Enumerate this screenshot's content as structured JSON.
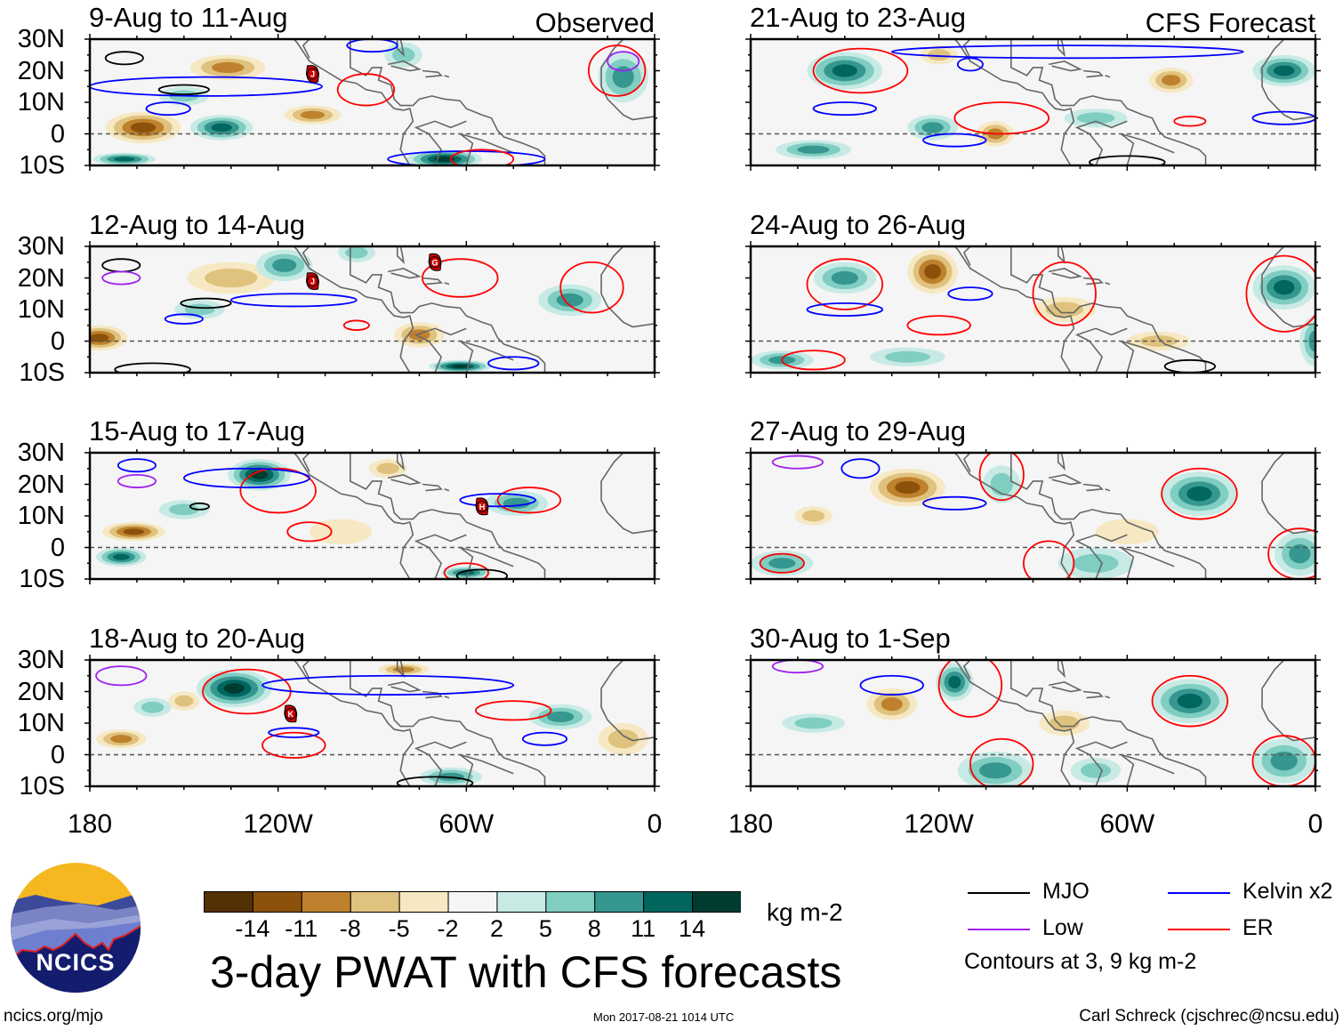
{
  "chart_data": {
    "type": "heatmap",
    "title": "3-day PWAT with CFS forecasts",
    "units": "kg m-2",
    "lat_ticks": [
      "30N",
      "20N",
      "10N",
      "0",
      "10S"
    ],
    "lon_ticks": [
      "180",
      "120W",
      "60W",
      "0"
    ],
    "lat_range": [
      -10,
      30
    ],
    "lon_range_west": [
      180,
      0
    ],
    "colorbar": {
      "labels": [
        "-14",
        "-11",
        "-8",
        "-5",
        "-2",
        "2",
        "5",
        "8",
        "11",
        "14"
      ],
      "colors": [
        "#543005",
        "#8c510a",
        "#bf812d",
        "#dfc27d",
        "#f6e8c3",
        "#f5f5f5",
        "#c7eae5",
        "#80cdc1",
        "#35978f",
        "#01665e",
        "#003c30"
      ]
    },
    "legend": {
      "items": [
        {
          "label": "MJO",
          "color": "#000000"
        },
        {
          "label": "Kelvin x2",
          "color": "#0000ff"
        },
        {
          "label": "Low",
          "color": "#a020f0"
        },
        {
          "label": "ER",
          "color": "#ff0000"
        }
      ],
      "note": "Contours at 3, 9 kg m-2"
    },
    "panels": [
      {
        "title": "9-Aug to 11-Aug",
        "tag": "Observed",
        "anomalies": [
          [
            136,
            21,
            12,
            4,
            -8
          ],
          [
            163,
            2,
            12,
            5,
            -11
          ],
          [
            138,
            2,
            10,
            4,
            11
          ],
          [
            109,
            6,
            9,
            3,
            -8
          ],
          [
            67,
            -8,
            12,
            3,
            14
          ],
          [
            10,
            18,
            8,
            8,
            8
          ],
          [
            169,
            -8,
            10,
            2,
            11
          ],
          [
            150,
            12,
            8,
            3,
            5
          ],
          [
            80,
            25,
            6,
            4,
            5
          ]
        ],
        "contours": [
          [
            "Kelvin",
            143,
            15,
            37,
            3
          ],
          [
            "ER",
            92,
            14,
            9,
            5
          ],
          [
            "MJO",
            169,
            24,
            6,
            2
          ],
          [
            "MJO",
            150,
            14,
            8,
            1.5
          ],
          [
            "Kelvin",
            155,
            8,
            7,
            2
          ],
          [
            "Kelvin",
            60,
            -8,
            25,
            2.5
          ],
          [
            "ER",
            55,
            -8,
            10,
            3
          ],
          [
            "ER",
            12,
            20,
            9,
            8
          ],
          [
            "Low",
            10,
            23,
            5,
            3
          ],
          [
            "Kelvin",
            90,
            28,
            8,
            2
          ]
        ],
        "storms": [
          [
            "J",
            109,
            19
          ]
        ]
      },
      {
        "title": "12-Aug to 14-Aug",
        "tag": "",
        "anomalies": [
          [
            177,
            1,
            9,
            4,
            -11
          ],
          [
            135,
            20,
            14,
            5,
            -5
          ],
          [
            118,
            24,
            9,
            5,
            8
          ],
          [
            62,
            -8,
            10,
            2,
            14
          ],
          [
            27,
            13,
            10,
            5,
            8
          ],
          [
            145,
            10,
            8,
            3,
            5
          ],
          [
            75,
            2,
            8,
            4,
            -8
          ],
          [
            95,
            28,
            6,
            3,
            5
          ]
        ],
        "contours": [
          [
            "MJO",
            170,
            24,
            6,
            2
          ],
          [
            "MJO",
            143,
            12,
            8,
            1.5
          ],
          [
            "Kelvin",
            115,
            13,
            20,
            2
          ],
          [
            "ER",
            62,
            20,
            12,
            6
          ],
          [
            "ER",
            20,
            17,
            10,
            8
          ],
          [
            "Kelvin",
            45,
            -7,
            8,
            2
          ],
          [
            "MJO",
            160,
            -9,
            12,
            2
          ],
          [
            "Kelvin",
            150,
            7,
            6,
            1.5
          ],
          [
            "ER",
            95,
            5,
            4,
            1.5
          ],
          [
            "Low",
            170,
            20,
            6,
            2
          ]
        ],
        "storms": [
          [
            "J",
            109,
            19
          ],
          [
            "G",
            70,
            25
          ]
        ]
      },
      {
        "title": "15-Aug to 17-Aug",
        "tag": "",
        "anomalies": [
          [
            126,
            23,
            10,
            5,
            14
          ],
          [
            166,
            5,
            10,
            3,
            -11
          ],
          [
            170,
            -3,
            8,
            3,
            11
          ],
          [
            44,
            14,
            10,
            4,
            8
          ],
          [
            150,
            12,
            8,
            3,
            5
          ],
          [
            85,
            25,
            6,
            3,
            -5
          ],
          [
            60,
            -8,
            8,
            2,
            11
          ],
          [
            100,
            5,
            10,
            4,
            -2
          ]
        ],
        "contours": [
          [
            "ER",
            120,
            18,
            12,
            7
          ],
          [
            "ER",
            110,
            5,
            7,
            3
          ],
          [
            "ER",
            40,
            15,
            10,
            4
          ],
          [
            "Kelvin",
            130,
            22,
            20,
            3
          ],
          [
            "Kelvin",
            50,
            15,
            12,
            2
          ],
          [
            "ER",
            60,
            -8,
            7,
            3
          ],
          [
            "MJO",
            145,
            13,
            3,
            1
          ],
          [
            "MJO",
            55,
            -9,
            8,
            2
          ],
          [
            "Kelvin",
            165,
            26,
            6,
            2
          ],
          [
            "Low",
            165,
            21,
            6,
            2
          ]
        ],
        "storms": [
          [
            "H",
            55,
            13
          ]
        ]
      },
      {
        "title": "18-Aug to 20-Aug",
        "tag": "",
        "anomalies": [
          [
            134,
            21,
            12,
            6,
            14
          ],
          [
            30,
            12,
            10,
            4,
            8
          ],
          [
            170,
            5,
            8,
            3,
            -8
          ],
          [
            160,
            15,
            6,
            3,
            5
          ],
          [
            150,
            17,
            5,
            3,
            -5
          ],
          [
            10,
            5,
            8,
            5,
            -5
          ],
          [
            65,
            -7,
            10,
            3,
            8
          ],
          [
            80,
            27,
            8,
            2,
            -8
          ]
        ],
        "contours": [
          [
            "ER",
            130,
            20,
            14,
            7
          ],
          [
            "Kelvin",
            85,
            22,
            40,
            3
          ],
          [
            "ER",
            45,
            14,
            12,
            3
          ],
          [
            "ER",
            115,
            3,
            10,
            4
          ],
          [
            "Kelvin",
            115,
            7,
            8,
            1.5
          ],
          [
            "Kelvin",
            35,
            5,
            7,
            2
          ],
          [
            "MJO",
            70,
            -9,
            12,
            2
          ],
          [
            "Low",
            170,
            25,
            8,
            3
          ]
        ],
        "storms": [
          [
            "K",
            116,
            13
          ]
        ]
      },
      {
        "title": "21-Aug to 23-Aug",
        "tag": "CFS Forecast",
        "anomalies": [
          [
            150,
            20,
            12,
            6,
            11
          ],
          [
            10,
            20,
            10,
            5,
            11
          ],
          [
            122,
            2,
            8,
            4,
            8
          ],
          [
            120,
            25,
            6,
            3,
            -5
          ],
          [
            46,
            17,
            7,
            4,
            -8
          ],
          [
            102,
            0,
            6,
            4,
            -8
          ],
          [
            160,
            -5,
            12,
            3,
            8
          ],
          [
            70,
            5,
            10,
            3,
            5
          ]
        ],
        "contours": [
          [
            "ER",
            145,
            20,
            15,
            7
          ],
          [
            "Kelvin",
            79,
            26,
            56,
            2
          ],
          [
            "ER",
            100,
            5,
            15,
            5
          ],
          [
            "Kelvin",
            150,
            8,
            10,
            2
          ],
          [
            "Kelvin",
            10,
            5,
            10,
            2
          ],
          [
            "Kelvin",
            110,
            22,
            4,
            2
          ],
          [
            "MJO",
            60,
            -9,
            12,
            2
          ],
          [
            "ER",
            40,
            4,
            5,
            1.5
          ],
          [
            "Kelvin",
            115,
            -2,
            10,
            2
          ]
        ],
        "storms": []
      },
      {
        "title": "24-Aug to 26-Aug",
        "tag": "",
        "anomalies": [
          [
            122,
            22,
            8,
            7,
            -11
          ],
          [
            150,
            20,
            10,
            5,
            8
          ],
          [
            10,
            17,
            10,
            7,
            11
          ],
          [
            0,
            0,
            5,
            8,
            8
          ],
          [
            130,
            -5,
            12,
            3,
            5
          ],
          [
            80,
            10,
            10,
            4,
            -5
          ],
          [
            50,
            0,
            10,
            3,
            -5
          ],
          [
            170,
            -6,
            10,
            3,
            8
          ]
        ],
        "contours": [
          [
            "ER",
            150,
            18,
            12,
            8
          ],
          [
            "ER",
            80,
            15,
            10,
            10
          ],
          [
            "ER",
            10,
            15,
            12,
            12
          ],
          [
            "ER",
            120,
            5,
            10,
            3
          ],
          [
            "Kelvin",
            110,
            15,
            7,
            2
          ],
          [
            "MJO",
            40,
            -8,
            8,
            2
          ],
          [
            "ER",
            160,
            -6,
            10,
            3
          ],
          [
            "Kelvin",
            150,
            10,
            12,
            2
          ]
        ],
        "storms": []
      },
      {
        "title": "27-Aug to 29-Aug",
        "tag": "",
        "anomalies": [
          [
            130,
            19,
            12,
            6,
            -11
          ],
          [
            37,
            17,
            12,
            7,
            11
          ],
          [
            5,
            -2,
            8,
            7,
            8
          ],
          [
            170,
            -5,
            10,
            4,
            8
          ],
          [
            100,
            20,
            6,
            6,
            5
          ],
          [
            70,
            -5,
            12,
            5,
            5
          ],
          [
            160,
            10,
            6,
            3,
            -5
          ],
          [
            60,
            5,
            10,
            4,
            -2
          ]
        ],
        "contours": [
          [
            "ER",
            37,
            17,
            12,
            8
          ],
          [
            "ER",
            5,
            -2,
            10,
            8
          ],
          [
            "ER",
            100,
            23,
            7,
            8
          ],
          [
            "Kelvin",
            145,
            25,
            6,
            3
          ],
          [
            "Kelvin",
            115,
            14,
            10,
            2
          ],
          [
            "ER",
            85,
            -5,
            8,
            7
          ],
          [
            "ER",
            170,
            -5,
            7,
            3
          ],
          [
            "Low",
            165,
            27,
            8,
            2
          ]
        ],
        "storms": []
      },
      {
        "title": "30-Aug to 1-Sep",
        "tag": "",
        "anomalies": [
          [
            115,
            23,
            6,
            6,
            11
          ],
          [
            135,
            16,
            8,
            5,
            -8
          ],
          [
            40,
            17,
            12,
            7,
            11
          ],
          [
            102,
            -5,
            12,
            6,
            8
          ],
          [
            10,
            -2,
            10,
            7,
            8
          ],
          [
            70,
            -5,
            8,
            4,
            5
          ],
          [
            160,
            10,
            10,
            3,
            5
          ],
          [
            80,
            10,
            8,
            4,
            -5
          ]
        ],
        "contours": [
          [
            "ER",
            110,
            22,
            10,
            10
          ],
          [
            "Kelvin",
            135,
            22,
            10,
            3
          ],
          [
            "ER",
            40,
            17,
            12,
            8
          ],
          [
            "ER",
            100,
            -3,
            10,
            8
          ],
          [
            "ER",
            10,
            -2,
            10,
            8
          ],
          [
            "Low",
            165,
            28,
            8,
            2
          ]
        ],
        "storms": []
      }
    ]
  },
  "footer": {
    "site": "ncics.org/mjo",
    "timestamp": "Mon 2017-08-21 1014 UTC",
    "author": "Carl Schreck (cjschrec@ncsu.edu)",
    "logo_text": "NCICS"
  }
}
